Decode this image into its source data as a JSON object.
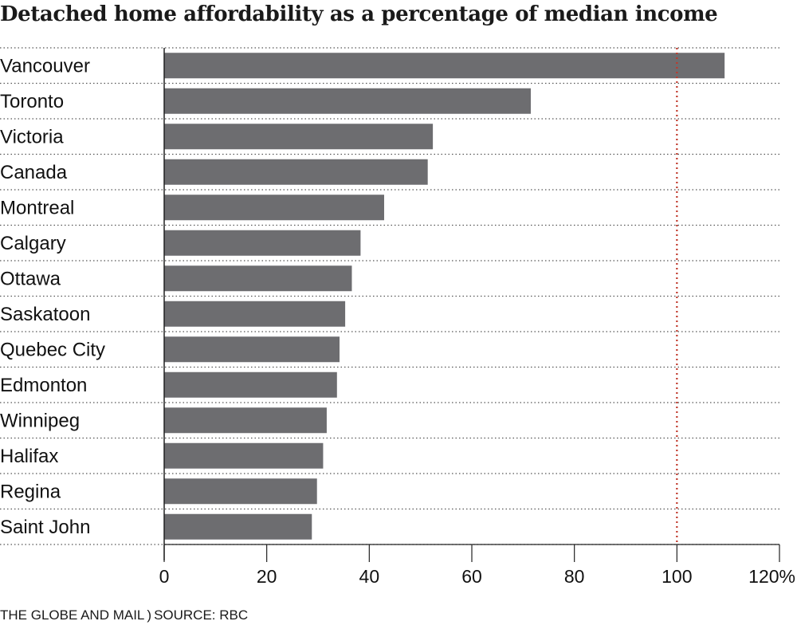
{
  "chart_data": {
    "type": "bar",
    "orientation": "horizontal",
    "title": "Detached home affordability as a percentage of median income",
    "categories": [
      "Vancouver",
      "Toronto",
      "Victoria",
      "Canada",
      "Montreal",
      "Calgary",
      "Ottawa",
      "Saskatoon",
      "Quebec City",
      "Edmonton",
      "Winnipeg",
      "Halifax",
      "Regina",
      "Saint John"
    ],
    "values": [
      109.3,
      71.5,
      52.4,
      51.4,
      42.9,
      38.3,
      36.6,
      35.3,
      34.2,
      33.7,
      31.7,
      31.0,
      29.8,
      28.8
    ],
    "xlim": [
      0,
      120
    ],
    "xticks": [
      "0",
      "20",
      "40",
      "60",
      "80",
      "100",
      "120%"
    ],
    "reference_line": 100,
    "xlabel": "",
    "ylabel": "",
    "grid": "dotted horizontal lines between rows",
    "bar_color": "#6d6d70",
    "reference_color": "#c0392b"
  },
  "footer": {
    "publisher": "THE GLOBE AND MAIL",
    "separator": ")",
    "source": "SOURCE: RBC"
  }
}
